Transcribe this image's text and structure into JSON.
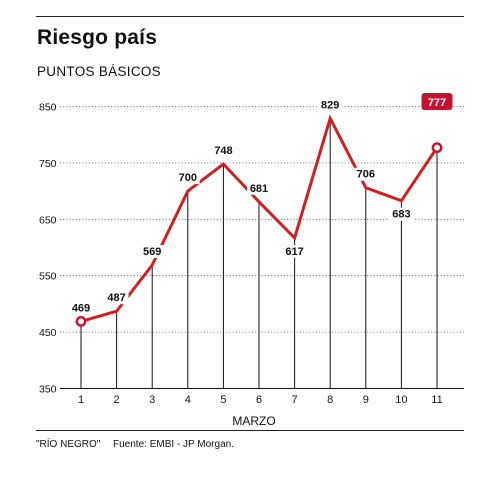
{
  "header": {
    "title": "Riesgo país",
    "subtitle": "PUNTOS BÁSICOS"
  },
  "chart_data": {
    "type": "line",
    "title": "Riesgo país",
    "subtitle": "PUNTOS BÁSICOS",
    "xlabel": "MARZO",
    "ylabel": "",
    "x": [
      1,
      2,
      3,
      4,
      5,
      6,
      7,
      8,
      9,
      10,
      11
    ],
    "series": [
      {
        "values": [
          469,
          487,
          569,
          700,
          748,
          681,
          617,
          829,
          706,
          683,
          777
        ]
      }
    ],
    "y_ticks": [
      350,
      450,
      550,
      650,
      750,
      850
    ],
    "ylim": [
      350,
      850
    ],
    "grid": true,
    "line_color": "#d11f1f",
    "highlight_color": "#c8102e",
    "highlighted_points": [
      1,
      11
    ]
  },
  "footer": {
    "credit": "\"RÍO NEGRO\"",
    "source": "Fuente: EMBI - JP Morgan."
  }
}
